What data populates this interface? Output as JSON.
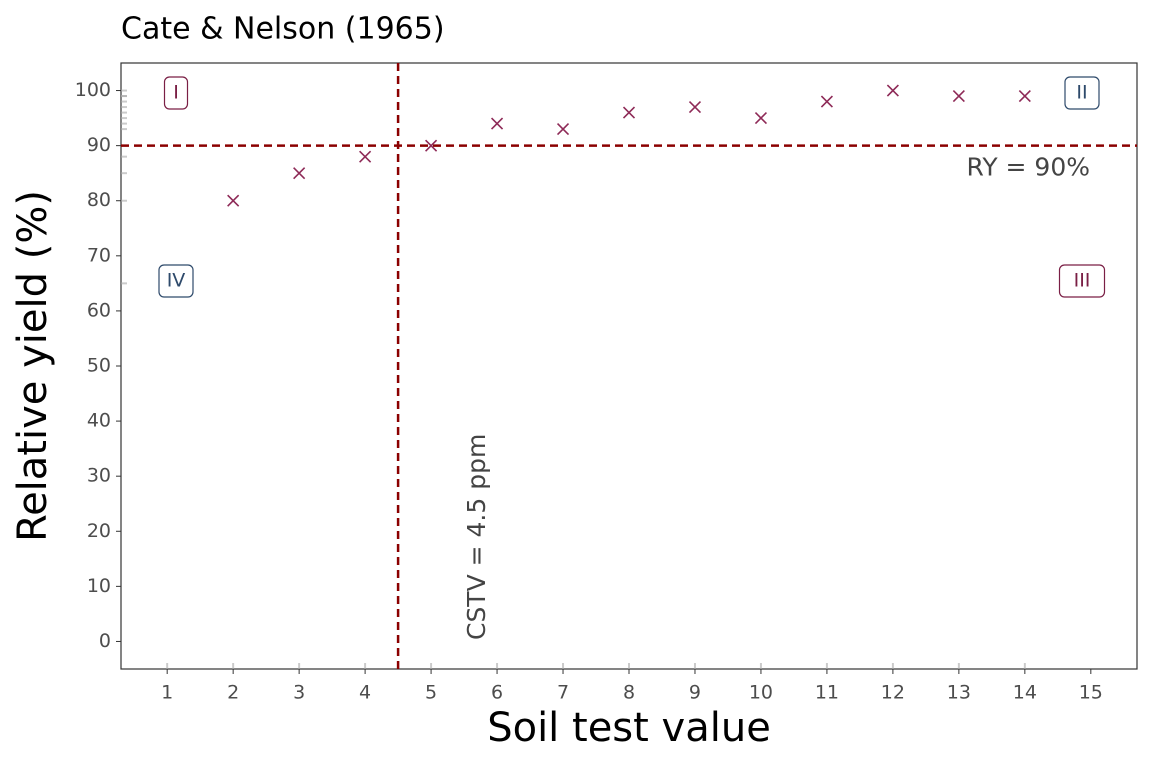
{
  "chart_data": {
    "type": "scatter",
    "title": "Cate & Nelson (1965)",
    "xlabel": "Soil test value",
    "ylabel": "Relative yield (%)",
    "x": [
      1,
      2,
      3,
      4,
      5,
      6,
      7,
      8,
      9,
      10,
      11,
      12,
      13,
      14
    ],
    "values": [
      65,
      80,
      85,
      88,
      90,
      94,
      93,
      96,
      97,
      95,
      98,
      100,
      99,
      99
    ],
    "color": "#8e2a57",
    "xlim": [
      0.3,
      15.7
    ],
    "xticks": [
      1,
      2,
      3,
      4,
      5,
      6,
      7,
      8,
      9,
      10,
      11,
      12,
      13,
      14,
      15
    ],
    "ylim": [
      -5,
      105
    ],
    "yticks": [
      0,
      10,
      20,
      30,
      40,
      50,
      60,
      70,
      80,
      90,
      100
    ],
    "cstv": 4.5,
    "cstv_label": "CSTV = 4.5 ppm",
    "ry": 90,
    "ry_label": "RY = 90%",
    "line_color": "#8b0000",
    "quadrants": [
      {
        "label": "I",
        "color": "#7a1f45"
      },
      {
        "label": "II",
        "color": "#2e4a6b"
      },
      {
        "label": "III",
        "color": "#7a1f45"
      },
      {
        "label": "IV",
        "color": "#2e4a6b"
      }
    ]
  }
}
